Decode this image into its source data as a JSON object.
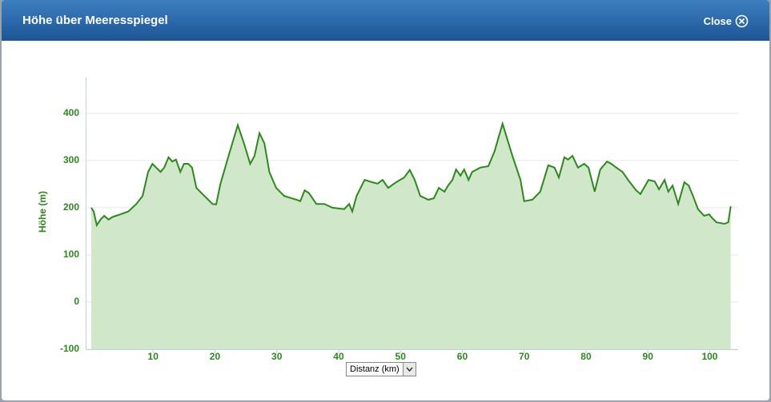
{
  "header": {
    "title": "Höhe über Meeresspiegel",
    "close": "Close"
  },
  "chart_data": {
    "type": "area",
    "y_label": "Höhe (m)",
    "x_label": "Distanz (km)",
    "color": "#2a8a1a",
    "fill_color": "#d0e7c9",
    "grid": true,
    "xlim": [
      -0.9,
      104.6
    ],
    "ylim": [
      -100,
      476
    ],
    "xticks": [
      10,
      20,
      30,
      40,
      50,
      60,
      70,
      80,
      90,
      100
    ],
    "yticks": [
      -100,
      0,
      100,
      200,
      300,
      400
    ],
    "x": [
      0.0,
      0.4,
      0.9,
      1.5,
      2.1,
      2.8,
      3.4,
      4.0,
      4.7,
      6.0,
      7.3,
      8.3,
      9.2,
      9.9,
      10.5,
      11.2,
      11.8,
      12.5,
      13.1,
      13.7,
      14.4,
      15.0,
      15.7,
      16.3,
      17.0,
      18.3,
      19.6,
      20.2,
      20.9,
      22.2,
      23.7,
      24.7,
      25.7,
      26.4,
      27.2,
      28.0,
      28.8,
      29.9,
      31.2,
      33.2,
      33.8,
      34.5,
      35.2,
      36.4,
      37.7,
      39.0,
      40.9,
      41.7,
      42.2,
      42.9,
      44.2,
      45.4,
      46.3,
      47.1,
      48.0,
      49.3,
      50.6,
      51.5,
      52.3,
      53.2,
      54.5,
      55.4,
      56.2,
      57.1,
      57.7,
      58.4,
      59.0,
      59.7,
      60.3,
      61.0,
      61.6,
      62.9,
      64.2,
      65.2,
      66.5,
      68.1,
      69.4,
      70.0,
      71.3,
      72.6,
      73.9,
      74.9,
      75.6,
      76.5,
      77.1,
      77.8,
      78.7,
      79.7,
      80.4,
      81.4,
      82.3,
      83.4,
      84.1,
      84.9,
      85.9,
      86.8,
      88.1,
      88.8,
      90.1,
      91.1,
      91.8,
      92.7,
      93.3,
      94.0,
      94.9,
      95.9,
      96.6,
      97.3,
      98.1,
      99.1,
      99.9,
      100.4,
      101.1,
      102.4,
      103.0,
      103.4
    ],
    "values": [
      200,
      192,
      163,
      175,
      183,
      175,
      180,
      183,
      186,
      192,
      208,
      225,
      276,
      293,
      285,
      276,
      285,
      307,
      298,
      302,
      276,
      293,
      293,
      285,
      242,
      225,
      208,
      207,
      251,
      310,
      375,
      336,
      293,
      310,
      358,
      336,
      276,
      242,
      225,
      217,
      214,
      237,
      231,
      208,
      208,
      200,
      197,
      208,
      192,
      225,
      259,
      254,
      251,
      259,
      242,
      254,
      264,
      280,
      259,
      225,
      217,
      220,
      242,
      234,
      247,
      259,
      281,
      268,
      281,
      259,
      276,
      285,
      288,
      319,
      378,
      310,
      259,
      214,
      217,
      234,
      290,
      285,
      264,
      307,
      302,
      310,
      285,
      293,
      285,
      234,
      281,
      298,
      293,
      285,
      276,
      259,
      237,
      229,
      259,
      256,
      239,
      259,
      234,
      247,
      208,
      254,
      247,
      225,
      197,
      183,
      186,
      178,
      169,
      166,
      169,
      203
    ]
  }
}
